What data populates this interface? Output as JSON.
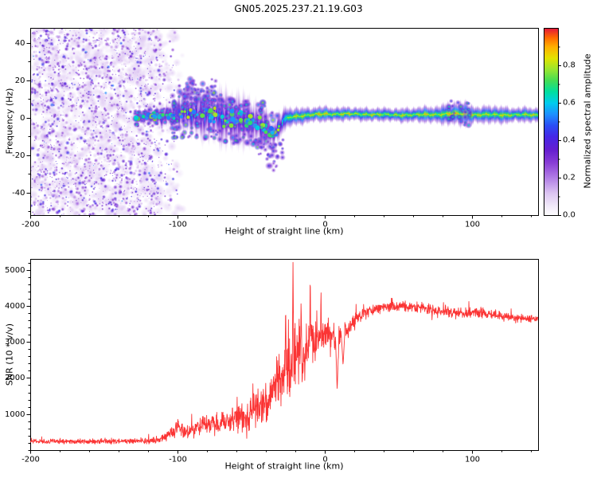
{
  "chart_data": [
    {
      "type": "heatmap",
      "title": "GN05.2025.237.21.19.G03",
      "xlabel": "Height of straight line (km)",
      "ylabel": "Frequency (Hz)",
      "xlim": [
        -200,
        145
      ],
      "ylim": [
        -52,
        48
      ],
      "xticks": [
        -200,
        -100,
        0,
        100
      ],
      "yticks": [
        -40,
        -20,
        0,
        20,
        40
      ],
      "grid": false,
      "colorbar": {
        "label": "Normalized spectral amplitude",
        "ticks": [
          0.0,
          0.2,
          0.4,
          0.6,
          0.8
        ],
        "range": [
          0,
          1
        ]
      },
      "colormap_stops": [
        [
          0.0,
          "#ffffff"
        ],
        [
          0.05,
          "#f2eafa"
        ],
        [
          0.12,
          "#dcc4f2"
        ],
        [
          0.2,
          "#b27fe6"
        ],
        [
          0.28,
          "#8a3fd6"
        ],
        [
          0.35,
          "#661fd0"
        ],
        [
          0.42,
          "#4628e6"
        ],
        [
          0.48,
          "#2b4ef5"
        ],
        [
          0.54,
          "#1e90ff"
        ],
        [
          0.6,
          "#00ccee"
        ],
        [
          0.66,
          "#00dfa0"
        ],
        [
          0.72,
          "#44dd55"
        ],
        [
          0.78,
          "#99e630"
        ],
        [
          0.84,
          "#e3e300"
        ],
        [
          0.9,
          "#ffb000"
        ],
        [
          0.95,
          "#ff6a00"
        ],
        [
          1.0,
          "#e3173c"
        ]
      ],
      "noise_region": {
        "x_range": [
          -200,
          -111
        ],
        "fade_to": -96,
        "haze_count": 1400,
        "dot_count": 2300,
        "amp_range": [
          0.06,
          0.5
        ]
      },
      "band_points": [
        [
          -129,
          0,
          1.6,
          0.5
        ],
        [
          -120,
          0.5,
          2,
          0.55
        ],
        [
          -111,
          1,
          2.6,
          0.58
        ],
        [
          -101,
          2,
          4,
          0.6
        ],
        [
          -90,
          2.5,
          6,
          0.62
        ],
        [
          -79,
          1.5,
          7,
          0.6
        ],
        [
          -68,
          0,
          7.5,
          0.6
        ],
        [
          -57,
          -1.5,
          7,
          0.62
        ],
        [
          -47,
          -3,
          6,
          0.62
        ],
        [
          -40,
          -5,
          5,
          0.6
        ],
        [
          -35,
          -9,
          4,
          0.55
        ],
        [
          -31,
          -5,
          3.5,
          0.62
        ],
        [
          -28,
          -1,
          3,
          0.75
        ],
        [
          -23,
          0.5,
          2.6,
          0.85
        ],
        [
          -17,
          1,
          2.2,
          0.9
        ],
        [
          -9,
          1.5,
          2,
          0.92
        ],
        [
          0,
          2,
          2,
          0.92
        ],
        [
          14,
          2,
          1.8,
          0.9
        ],
        [
          30,
          1.8,
          1.8,
          0.9
        ],
        [
          46,
          1.5,
          1.8,
          0.88
        ],
        [
          62,
          1.5,
          2,
          0.9
        ],
        [
          76,
          1.8,
          2.3,
          0.9
        ],
        [
          86,
          2,
          3,
          0.92
        ],
        [
          96,
          2,
          3.1,
          0.92
        ],
        [
          104,
          1.5,
          2.1,
          0.88
        ],
        [
          114,
          1.6,
          2.5,
          0.9
        ],
        [
          127,
          1.5,
          2,
          0.88
        ],
        [
          145,
          1.5,
          2,
          0.9
        ]
      ],
      "scatter_clusters": [
        {
          "x_range": [
            -104,
            -32
          ],
          "dy_range": [
            -13,
            13
          ],
          "amp_range": [
            0.35,
            0.8
          ],
          "count": 240,
          "r_range": [
            1.2,
            3.2
          ]
        },
        {
          "x_range": [
            -96,
            -74
          ],
          "dy_range": [
            5,
            20
          ],
          "amp_range": [
            0.28,
            0.58
          ],
          "count": 55,
          "r_range": [
            1.2,
            3.0
          ]
        },
        {
          "x_range": [
            -46,
            -28
          ],
          "dy_range": [
            -20,
            -5
          ],
          "amp_range": [
            0.28,
            0.55
          ],
          "count": 38,
          "r_range": [
            1.2,
            2.8
          ]
        },
        {
          "x_range": [
            -129,
            -100
          ],
          "dy_range": [
            -4,
            4
          ],
          "amp_range": [
            0.4,
            0.72
          ],
          "count": 70,
          "r_range": [
            1.2,
            2.6
          ]
        },
        {
          "x_range": [
            83,
            99
          ],
          "dy_range": [
            -6,
            7
          ],
          "amp_range": [
            0.4,
            0.75
          ],
          "count": 26,
          "r_range": [
            1.2,
            2.6
          ]
        }
      ],
      "band_dots": {
        "x_range": [
          -129,
          -30
        ],
        "count": 125,
        "amp_range": [
          0.5,
          0.82
        ],
        "r_range": [
          1.6,
          3.2
        ]
      }
    },
    {
      "type": "line",
      "xlabel": "Height of straight line (km)",
      "ylabel": "SNR (10 * v/v)",
      "xlim": [
        -200,
        145
      ],
      "ylim": [
        0,
        5300
      ],
      "xticks": [
        -200,
        -100,
        0,
        100
      ],
      "yticks": [
        1000,
        2000,
        3000,
        4000,
        5000
      ],
      "grid": false,
      "line_color": "#fb3434",
      "baseline": [
        [
          -200,
          240,
          70
        ],
        [
          -150,
          240,
          70
        ],
        [
          -122,
          250,
          75
        ],
        [
          -113,
          280,
          90
        ],
        [
          -107,
          420,
          170
        ],
        [
          -100,
          620,
          260
        ],
        [
          -94,
          520,
          190
        ],
        [
          -87,
          600,
          240
        ],
        [
          -80,
          700,
          290
        ],
        [
          -72,
          760,
          330
        ],
        [
          -64,
          850,
          380
        ],
        [
          -57,
          950,
          430
        ],
        [
          -50,
          1050,
          500
        ],
        [
          -43,
          1200,
          580
        ],
        [
          -37,
          1450,
          750
        ],
        [
          -31,
          1850,
          900
        ],
        [
          -27,
          2150,
          1000
        ],
        [
          -22,
          2400,
          1050
        ],
        [
          -18,
          2600,
          980
        ],
        [
          -14,
          2750,
          900
        ],
        [
          -10,
          2900,
          820
        ],
        [
          -6,
          3050,
          700
        ],
        [
          -2,
          3200,
          600
        ],
        [
          2,
          3300,
          520
        ],
        [
          6,
          3250,
          460
        ],
        [
          10,
          3150,
          420
        ],
        [
          14,
          3300,
          360
        ],
        [
          18,
          3500,
          280
        ],
        [
          22,
          3650,
          230
        ],
        [
          26,
          3780,
          190
        ],
        [
          31,
          3870,
          170
        ],
        [
          38,
          3940,
          155
        ],
        [
          46,
          3980,
          150
        ],
        [
          55,
          3970,
          150
        ],
        [
          64,
          3940,
          150
        ],
        [
          72,
          3900,
          155
        ],
        [
          80,
          3860,
          160
        ],
        [
          88,
          3810,
          160
        ],
        [
          96,
          3780,
          155
        ],
        [
          103,
          3840,
          150
        ],
        [
          108,
          3810,
          145
        ],
        [
          114,
          3770,
          140
        ],
        [
          121,
          3720,
          140
        ],
        [
          129,
          3680,
          135
        ],
        [
          137,
          3650,
          130
        ],
        [
          145,
          3620,
          130
        ]
      ],
      "spikes": [
        [
          -21.5,
          5250
        ],
        [
          -9.8,
          5060
        ],
        [
          -2.5,
          4660
        ],
        [
          -26.5,
          4150
        ],
        [
          -16,
          4350
        ]
      ],
      "dips": [
        [
          8.5,
          1650
        ],
        [
          12.5,
          2350
        ]
      ]
    }
  ]
}
